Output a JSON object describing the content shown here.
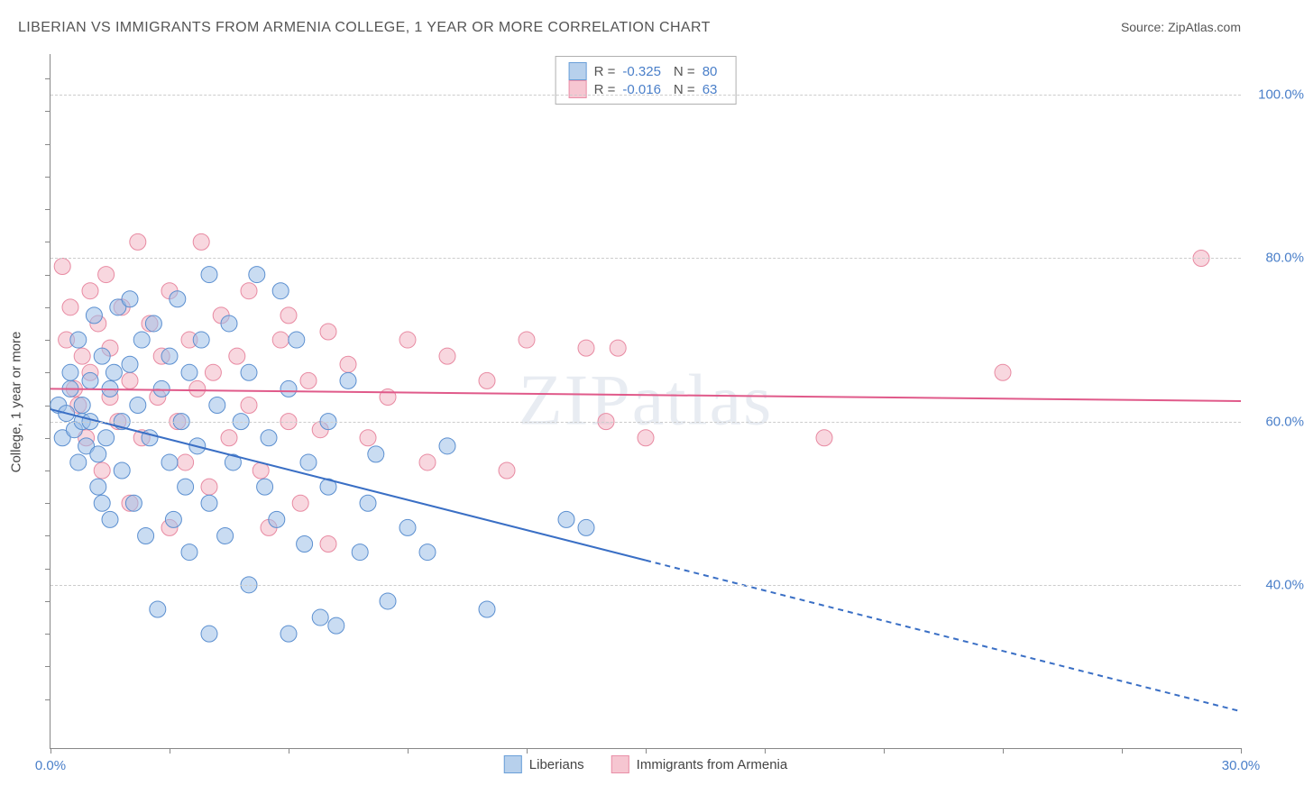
{
  "title": "LIBERIAN VS IMMIGRANTS FROM ARMENIA COLLEGE, 1 YEAR OR MORE CORRELATION CHART",
  "source_prefix": "Source: ",
  "source": "ZipAtlas.com",
  "ylabel": "College, 1 year or more",
  "watermark": "ZIPatlas",
  "chart": {
    "type": "scatter",
    "xlim": [
      0,
      30
    ],
    "ylim": [
      20,
      105
    ],
    "x_ticks": [
      0,
      3,
      6,
      9,
      12,
      15,
      18,
      21,
      24,
      27,
      30
    ],
    "x_tick_labels": {
      "0": "0.0%",
      "30": "30.0%"
    },
    "y_ticks": [
      40,
      60,
      80,
      100
    ],
    "y_tick_labels": {
      "40": "40.0%",
      "60": "60.0%",
      "80": "80.0%",
      "100": "100.0%"
    },
    "y_minor_ticks": [
      26,
      30,
      34,
      38,
      42,
      46,
      50,
      54,
      58,
      62,
      66,
      70,
      74,
      78,
      82,
      86,
      90,
      94,
      98,
      102
    ],
    "background_color": "#ffffff",
    "grid_color": "#cccccc",
    "marker_radius": 9,
    "marker_opacity": 0.55,
    "series": [
      {
        "name": "Liberians",
        "color_fill": "#9cc0e7",
        "color_stroke": "#5b8fd0",
        "swatch_fill": "#b7d0ec",
        "swatch_stroke": "#6a9fd8",
        "R": "-0.325",
        "N": "80",
        "trend": {
          "x1": 0,
          "y1": 61.5,
          "x2": 15,
          "y2": 43,
          "solid_until_x": 15,
          "extend_to_x": 30,
          "extend_to_y": 24.5,
          "stroke": "#3a6fc5",
          "width": 2
        },
        "points": [
          [
            0.2,
            62
          ],
          [
            0.3,
            58
          ],
          [
            0.4,
            61
          ],
          [
            0.5,
            64
          ],
          [
            0.5,
            66
          ],
          [
            0.6,
            59
          ],
          [
            0.7,
            55
          ],
          [
            0.7,
            70
          ],
          [
            0.8,
            62
          ],
          [
            0.8,
            60
          ],
          [
            0.9,
            57
          ],
          [
            1.0,
            65
          ],
          [
            1.0,
            60
          ],
          [
            1.1,
            73
          ],
          [
            1.2,
            52
          ],
          [
            1.2,
            56
          ],
          [
            1.3,
            68
          ],
          [
            1.3,
            50
          ],
          [
            1.4,
            58
          ],
          [
            1.5,
            64
          ],
          [
            1.5,
            48
          ],
          [
            1.6,
            66
          ],
          [
            1.7,
            74
          ],
          [
            1.8,
            54
          ],
          [
            1.8,
            60
          ],
          [
            2.0,
            67
          ],
          [
            2.0,
            75
          ],
          [
            2.1,
            50
          ],
          [
            2.2,
            62
          ],
          [
            2.3,
            70
          ],
          [
            2.4,
            46
          ],
          [
            2.5,
            58
          ],
          [
            2.6,
            72
          ],
          [
            2.7,
            37
          ],
          [
            2.8,
            64
          ],
          [
            3.0,
            68
          ],
          [
            3.0,
            55
          ],
          [
            3.1,
            48
          ],
          [
            3.2,
            75
          ],
          [
            3.3,
            60
          ],
          [
            3.4,
            52
          ],
          [
            3.5,
            44
          ],
          [
            3.5,
            66
          ],
          [
            3.7,
            57
          ],
          [
            3.8,
            70
          ],
          [
            4.0,
            78
          ],
          [
            4.0,
            50
          ],
          [
            4.0,
            34
          ],
          [
            4.2,
            62
          ],
          [
            4.4,
            46
          ],
          [
            4.5,
            72
          ],
          [
            4.6,
            55
          ],
          [
            4.8,
            60
          ],
          [
            5.0,
            40
          ],
          [
            5.0,
            66
          ],
          [
            5.2,
            78
          ],
          [
            5.4,
            52
          ],
          [
            5.5,
            58
          ],
          [
            5.7,
            48
          ],
          [
            5.8,
            76
          ],
          [
            6.0,
            64
          ],
          [
            6.0,
            34
          ],
          [
            6.2,
            70
          ],
          [
            6.4,
            45
          ],
          [
            6.5,
            55
          ],
          [
            6.8,
            36
          ],
          [
            7.0,
            52
          ],
          [
            7.0,
            60
          ],
          [
            7.2,
            35
          ],
          [
            7.5,
            65
          ],
          [
            7.8,
            44
          ],
          [
            8.0,
            50
          ],
          [
            8.2,
            56
          ],
          [
            8.5,
            38
          ],
          [
            9.0,
            47
          ],
          [
            9.5,
            44
          ],
          [
            10.0,
            57
          ],
          [
            11.0,
            37
          ],
          [
            13.0,
            48
          ],
          [
            13.5,
            47
          ]
        ]
      },
      {
        "name": "Immigrants from Armenia",
        "color_fill": "#f2b6c4",
        "color_stroke": "#e88aa2",
        "swatch_fill": "#f6c6d1",
        "swatch_stroke": "#e98fa8",
        "R": "-0.016",
        "N": "63",
        "trend": {
          "x1": 0,
          "y1": 64,
          "x2": 30,
          "y2": 62.5,
          "solid_until_x": 30,
          "stroke": "#e05a8a",
          "width": 2
        },
        "points": [
          [
            0.3,
            79
          ],
          [
            0.4,
            70
          ],
          [
            0.5,
            74
          ],
          [
            0.6,
            64
          ],
          [
            0.7,
            62
          ],
          [
            0.8,
            68
          ],
          [
            0.9,
            58
          ],
          [
            1.0,
            66
          ],
          [
            1.0,
            76
          ],
          [
            1.2,
            72
          ],
          [
            1.3,
            54
          ],
          [
            1.4,
            78
          ],
          [
            1.5,
            63
          ],
          [
            1.5,
            69
          ],
          [
            1.7,
            60
          ],
          [
            1.8,
            74
          ],
          [
            2.0,
            50
          ],
          [
            2.0,
            65
          ],
          [
            2.2,
            82
          ],
          [
            2.3,
            58
          ],
          [
            2.5,
            72
          ],
          [
            2.7,
            63
          ],
          [
            2.8,
            68
          ],
          [
            3.0,
            76
          ],
          [
            3.0,
            47
          ],
          [
            3.2,
            60
          ],
          [
            3.4,
            55
          ],
          [
            3.5,
            70
          ],
          [
            3.7,
            64
          ],
          [
            3.8,
            82
          ],
          [
            4.0,
            52
          ],
          [
            4.1,
            66
          ],
          [
            4.3,
            73
          ],
          [
            4.5,
            58
          ],
          [
            4.7,
            68
          ],
          [
            5.0,
            62
          ],
          [
            5.0,
            76
          ],
          [
            5.3,
            54
          ],
          [
            5.5,
            47
          ],
          [
            5.8,
            70
          ],
          [
            6.0,
            60
          ],
          [
            6.0,
            73
          ],
          [
            6.3,
            50
          ],
          [
            6.5,
            65
          ],
          [
            6.8,
            59
          ],
          [
            7.0,
            71
          ],
          [
            7.0,
            45
          ],
          [
            7.5,
            67
          ],
          [
            8.0,
            58
          ],
          [
            8.5,
            63
          ],
          [
            9.0,
            70
          ],
          [
            9.5,
            55
          ],
          [
            10.0,
            68
          ],
          [
            11.0,
            65
          ],
          [
            11.5,
            54
          ],
          [
            12.0,
            70
          ],
          [
            13.5,
            69
          ],
          [
            14.0,
            60
          ],
          [
            14.3,
            69
          ],
          [
            15.0,
            58
          ],
          [
            19.5,
            58
          ],
          [
            24.0,
            66
          ],
          [
            29.0,
            80
          ]
        ]
      }
    ]
  }
}
